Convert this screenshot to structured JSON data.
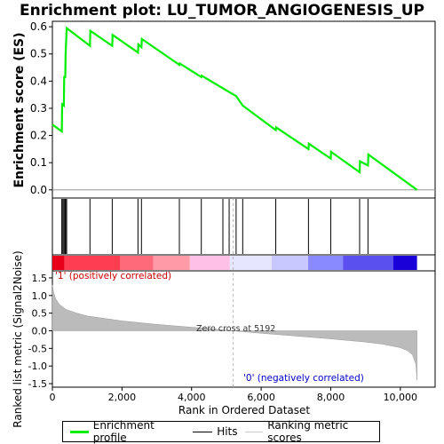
{
  "chart_data": {
    "type": "line",
    "title": "Enrichment plot: LU_TUMOR_ANGIOGENESIS_UP",
    "xlabel": "Rank in Ordered Dataset",
    "es_ylabel": "Enrichment score (ES)",
    "metric_ylabel": "Ranked list metric (Signal2Noise)",
    "xlim": [
      0,
      11000
    ],
    "x_ticks": [
      0,
      2000,
      4000,
      6000,
      8000,
      10000
    ],
    "x_tick_labels": [
      "0",
      "2,000",
      "4,000",
      "6,000",
      "8,000",
      "10,000"
    ],
    "es_ylim": [
      -0.03,
      0.62
    ],
    "es_ticks": [
      0.0,
      0.1,
      0.2,
      0.3,
      0.4,
      0.5,
      0.6
    ],
    "es_tick_labels": [
      "0.0",
      "0.1",
      "0.2",
      "0.3",
      "0.4",
      "0.5",
      "0.6"
    ],
    "metric_ylim": [
      -1.6,
      1.7
    ],
    "metric_ticks": [
      -1.5,
      -1.0,
      -0.5,
      0.0,
      0.5,
      1.0,
      1.5
    ],
    "metric_tick_labels": [
      "-1.5",
      "-1.0",
      "-0.5",
      "0.0",
      "0.5",
      "1.0",
      "1.5"
    ],
    "series": [
      {
        "name": "Enrichment profile",
        "x": [
          0,
          270,
          280,
          330,
          340,
          370,
          380,
          410,
          1080,
          1090,
          1720,
          1730,
          2460,
          2470,
          2560,
          2570,
          3650,
          3660,
          4280,
          4290,
          5080,
          5280,
          5470,
          6420,
          6430,
          7360,
          7370,
          8000,
          8010,
          8830,
          8840,
          9070,
          9080,
          10480
        ],
        "y": [
          0.24,
          0.215,
          0.315,
          0.31,
          0.415,
          0.415,
          0.5,
          0.595,
          0.53,
          0.585,
          0.53,
          0.57,
          0.505,
          0.535,
          0.525,
          0.555,
          0.46,
          0.465,
          0.415,
          0.42,
          0.36,
          0.345,
          0.31,
          0.22,
          0.23,
          0.15,
          0.17,
          0.115,
          0.14,
          0.065,
          0.105,
          0.09,
          0.13,
          0.0
        ]
      }
    ],
    "hits": [
      270,
      300,
      330,
      360,
      380,
      410,
      1080,
      1720,
      2460,
      2560,
      3650,
      4280,
      4900,
      5080,
      5280,
      5470,
      6420,
      7360,
      8000,
      8830,
      9070
    ],
    "metric_curve": {
      "x": [
        0,
        30,
        100,
        200,
        400,
        700,
        1000,
        1500,
        2000,
        3000,
        4000,
        5000,
        5192,
        6000,
        7000,
        8000,
        9000,
        9500,
        10000,
        10200,
        10350,
        10450,
        10480
      ],
      "y": [
        1.3,
        1.1,
        0.9,
        0.75,
        0.6,
        0.5,
        0.42,
        0.35,
        0.28,
        0.18,
        0.1,
        0.02,
        0.0,
        -0.07,
        -0.15,
        -0.23,
        -0.32,
        -0.38,
        -0.48,
        -0.56,
        -0.68,
        -0.95,
        -1.4
      ]
    },
    "zero_cross_rank": 5192,
    "annotations": {
      "zero_cross": "Zero cross at 5192",
      "positive": "'1' (positively correlated)",
      "negative": "'0' (negatively correlated)"
    },
    "colorbar": [
      {
        "from": 0,
        "to": 350,
        "color": "#e8001a"
      },
      {
        "from": 350,
        "to": 1950,
        "color": "#ff3d50"
      },
      {
        "from": 1950,
        "to": 2900,
        "color": "#ff6a7a"
      },
      {
        "from": 2900,
        "to": 3950,
        "color": "#ff9aa6"
      },
      {
        "from": 3950,
        "to": 5100,
        "color": "#ffc0e8"
      },
      {
        "from": 5100,
        "to": 6300,
        "color": "#e6e6ff"
      },
      {
        "from": 6300,
        "to": 7350,
        "color": "#c8c8ff"
      },
      {
        "from": 7350,
        "to": 8350,
        "color": "#8a8aff"
      },
      {
        "from": 8350,
        "to": 9800,
        "color": "#5a50f0"
      },
      {
        "from": 9800,
        "to": 10480,
        "color": "#1a00d8"
      }
    ],
    "legend": {
      "items": [
        "Enrichment profile",
        "Hits",
        "Ranking metric scores"
      ],
      "position": "bottom"
    },
    "colors": {
      "profile": "#00ee00",
      "hits": "#000000",
      "metric_fill": "#bbbbbb",
      "positive_text": "#cc0000",
      "negative_text": "#0000cc",
      "zero_line": "#aaaaaa"
    }
  }
}
